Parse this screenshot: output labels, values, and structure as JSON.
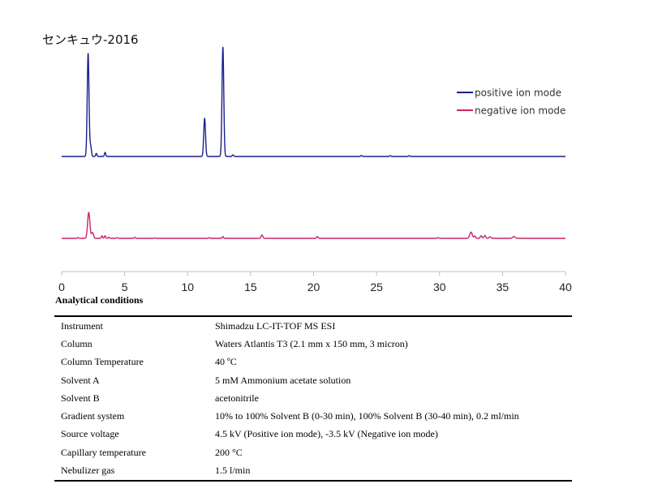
{
  "title": "センキュウ-2016",
  "section_heading": "Analytical conditions",
  "chart_data": {
    "type": "line",
    "title": "センキュウ-2016",
    "xlabel": "",
    "ylabel": "",
    "xlim": [
      0,
      40
    ],
    "x_ticks": [
      0,
      5,
      10,
      15,
      20,
      25,
      30,
      35,
      40
    ],
    "grid": false,
    "legend": "top-right",
    "series": [
      {
        "name": "positive ion mode",
        "color": "#1a1f8f",
        "baseline": 0,
        "scale_max": 100,
        "peaks": [
          {
            "x": 2.1,
            "y": 100,
            "w": 0.07
          },
          {
            "x": 2.3,
            "y": 10,
            "w": 0.06
          },
          {
            "x": 2.75,
            "y": 3,
            "w": 0.05
          },
          {
            "x": 3.45,
            "y": 4,
            "w": 0.05
          },
          {
            "x": 11.35,
            "y": 37,
            "w": 0.07
          },
          {
            "x": 12.8,
            "y": 106,
            "w": 0.07
          },
          {
            "x": 13.6,
            "y": 1.5,
            "w": 0.06
          },
          {
            "x": 23.8,
            "y": 1,
            "w": 0.05
          },
          {
            "x": 26.1,
            "y": 0.8,
            "w": 0.05
          },
          {
            "x": 27.6,
            "y": 0.8,
            "w": 0.05
          }
        ]
      },
      {
        "name": "negative ion mode",
        "color": "#c8246a",
        "baseline": 0,
        "scale_max": 100,
        "peaks": [
          {
            "x": 1.3,
            "y": 3,
            "w": 0.05
          },
          {
            "x": 2.15,
            "y": 100,
            "w": 0.09
          },
          {
            "x": 2.45,
            "y": 22,
            "w": 0.08
          },
          {
            "x": 3.2,
            "y": 10,
            "w": 0.05
          },
          {
            "x": 3.45,
            "y": 10,
            "w": 0.05
          },
          {
            "x": 3.75,
            "y": 4,
            "w": 0.05
          },
          {
            "x": 4.4,
            "y": 3,
            "w": 0.05
          },
          {
            "x": 5.8,
            "y": 4,
            "w": 0.05
          },
          {
            "x": 7.4,
            "y": 2,
            "w": 0.05
          },
          {
            "x": 11.7,
            "y": 3,
            "w": 0.05
          },
          {
            "x": 12.8,
            "y": 7,
            "w": 0.05
          },
          {
            "x": 15.9,
            "y": 13,
            "w": 0.07
          },
          {
            "x": 20.3,
            "y": 7,
            "w": 0.06
          },
          {
            "x": 29.9,
            "y": 3,
            "w": 0.05
          },
          {
            "x": 32.5,
            "y": 24,
            "w": 0.1
          },
          {
            "x": 32.8,
            "y": 9,
            "w": 0.06
          },
          {
            "x": 33.3,
            "y": 10,
            "w": 0.07
          },
          {
            "x": 33.6,
            "y": 11,
            "w": 0.07
          },
          {
            "x": 34.0,
            "y": 6,
            "w": 0.07
          },
          {
            "x": 35.9,
            "y": 7,
            "w": 0.1
          }
        ]
      }
    ]
  },
  "conditions": [
    {
      "label": "Instrument",
      "value": "Shimadzu LC-IT-TOF MS ESI"
    },
    {
      "label": "Column",
      "value": "Waters Atlantis T3 (2.1 mm x 150 mm, 3 micron)"
    },
    {
      "label": "Column Temperature",
      "value": "40 ºC"
    },
    {
      "label": "Solvent A",
      "value": "5 mM Ammonium acetate solution"
    },
    {
      "label": "Solvent B",
      "value": "acetonitrile"
    },
    {
      "label": "Gradient system",
      "value": "10% to 100% Solvent B (0-30 min), 100% Solvent B (30-40 min), 0.2 ml/min"
    },
    {
      "label": "Source voltage",
      "value": "4.5 kV (Positive ion mode), -3.5 kV (Negative ion mode)"
    },
    {
      "label": "Capillary temperature",
      "value": "200 °C"
    },
    {
      "label": "Nebulizer gas",
      "value": "1.5 l/min"
    }
  ]
}
